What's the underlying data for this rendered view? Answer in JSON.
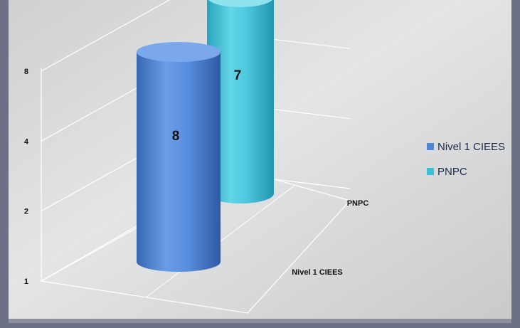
{
  "chart_data": {
    "type": "bar",
    "style": "3d-cylinder",
    "categories": [
      "Nivel 1 CIEES",
      "PNPC"
    ],
    "series": [
      {
        "name": "Nivel 1 CIEES",
        "values": [
          8,
          null
        ],
        "color": "#4f86d8"
      },
      {
        "name": "PNPC",
        "values": [
          null,
          7
        ],
        "color": "#3cc0d6"
      }
    ],
    "data_labels": [
      "8",
      "7"
    ],
    "y_ticks": [
      "1",
      "2",
      "4",
      "8"
    ],
    "y_scale": "log2",
    "ylim": [
      1,
      8
    ],
    "grid": true,
    "legend": "right",
    "title": "",
    "xlabel": "",
    "ylabel": ""
  },
  "colors": {
    "frame": "#6d7188",
    "background": "#d9dadb",
    "gridline": "#ffffff"
  }
}
